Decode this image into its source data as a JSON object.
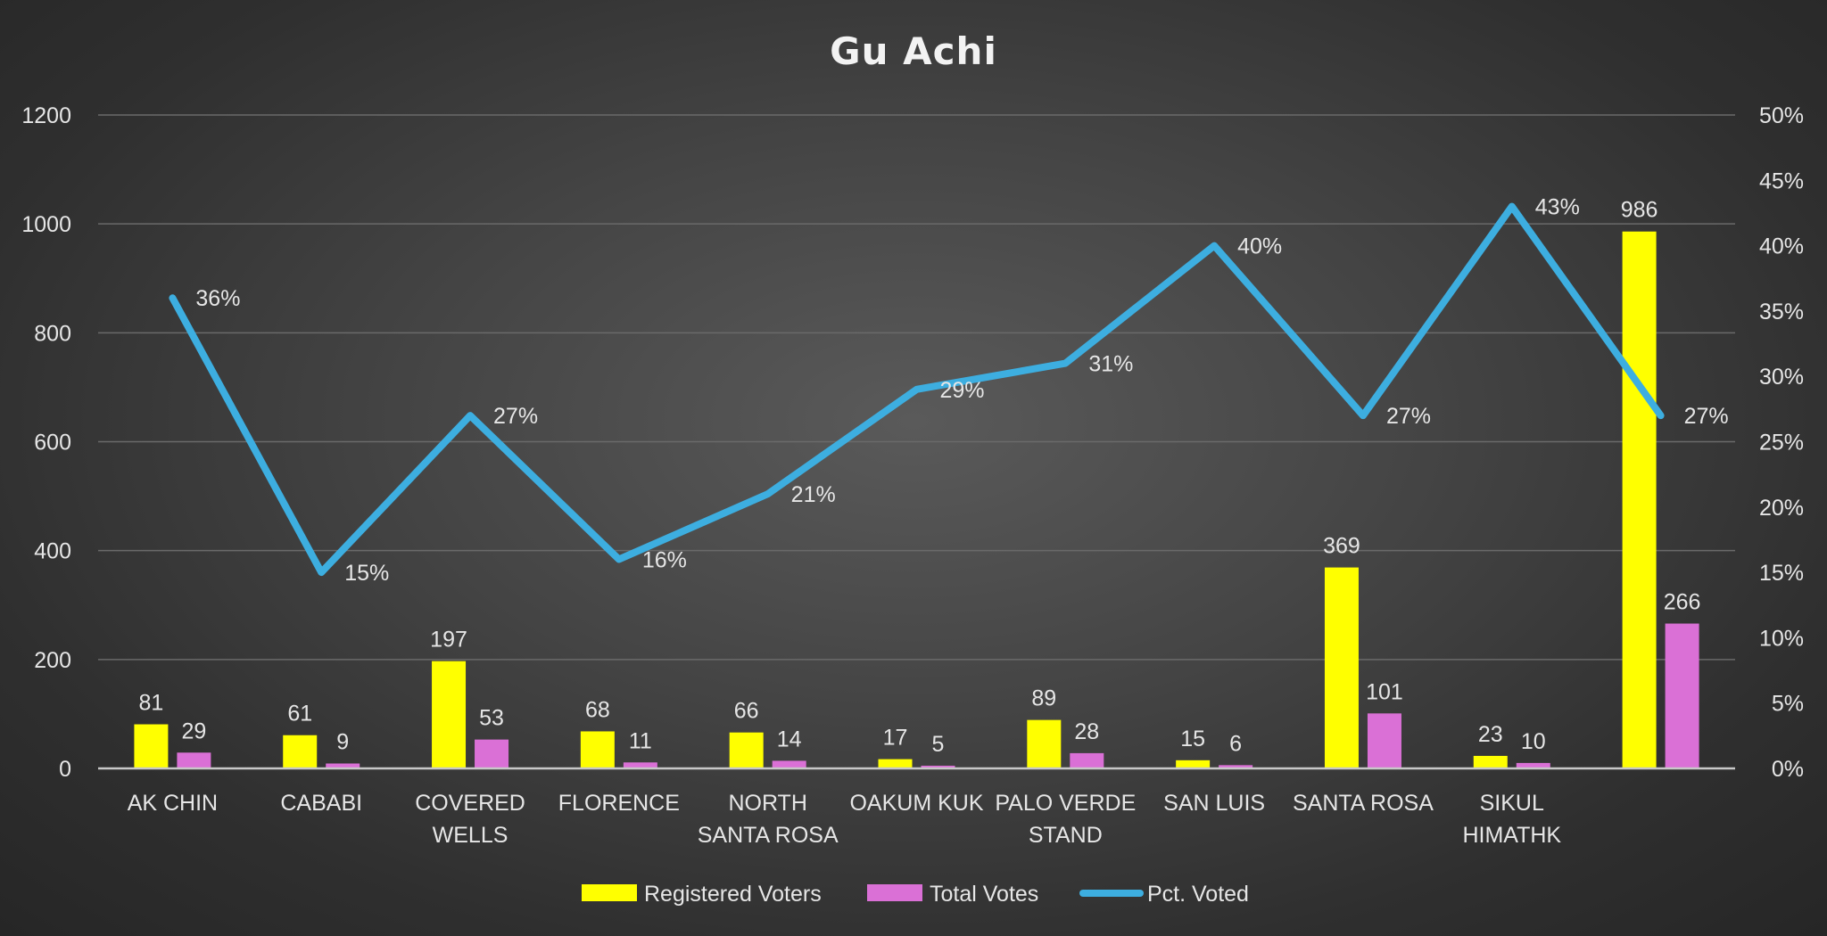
{
  "chart_data": {
    "type": "bar",
    "title": "Gu Achi",
    "categories": [
      [
        "AK CHIN"
      ],
      [
        "CABABI"
      ],
      [
        "COVERED",
        "WELLS"
      ],
      [
        "FLORENCE"
      ],
      [
        "NORTH",
        "SANTA ROSA"
      ],
      [
        "OAKUM KUK"
      ],
      [
        "PALO VERDE",
        "STAND"
      ],
      [
        "SAN LUIS"
      ],
      [
        "SANTA ROSA"
      ],
      [
        "SIKUL",
        "HIMATHK"
      ],
      [
        ""
      ]
    ],
    "series": [
      {
        "name": "Registered Voters",
        "type": "bar",
        "axis": "left",
        "color": "#ffff00",
        "values": [
          81,
          61,
          197,
          68,
          66,
          17,
          89,
          15,
          369,
          23,
          986
        ]
      },
      {
        "name": "Total Votes",
        "type": "bar",
        "axis": "left",
        "color": "#da70d6",
        "values": [
          29,
          9,
          53,
          11,
          14,
          5,
          28,
          6,
          101,
          10,
          266
        ]
      },
      {
        "name": "Pct. Voted",
        "type": "line",
        "axis": "right",
        "color": "#3daee0",
        "values": [
          0.36,
          0.15,
          0.27,
          0.16,
          0.21,
          0.29,
          0.31,
          0.4,
          0.27,
          0.43,
          0.27
        ],
        "labels": [
          "36%",
          "15%",
          "27%",
          "16%",
          "21%",
          "29%",
          "31%",
          "40%",
          "27%",
          "43%",
          "27%"
        ]
      }
    ],
    "y_left": {
      "ylim": [
        0,
        1200
      ],
      "ticks": [
        "0",
        "200",
        "400",
        "600",
        "800",
        "1000",
        "1200"
      ]
    },
    "y_right": {
      "ylim": [
        0,
        0.5
      ],
      "ticks": [
        "0%",
        "5%",
        "10%",
        "15%",
        "20%",
        "25%",
        "30%",
        "35%",
        "40%",
        "45%",
        "50%"
      ]
    },
    "grid": true,
    "legend": "bottom",
    "colors": {
      "gridline": "#6a6a6a",
      "baseline": "#c8c8c8",
      "text": "#e6e6e6"
    }
  }
}
